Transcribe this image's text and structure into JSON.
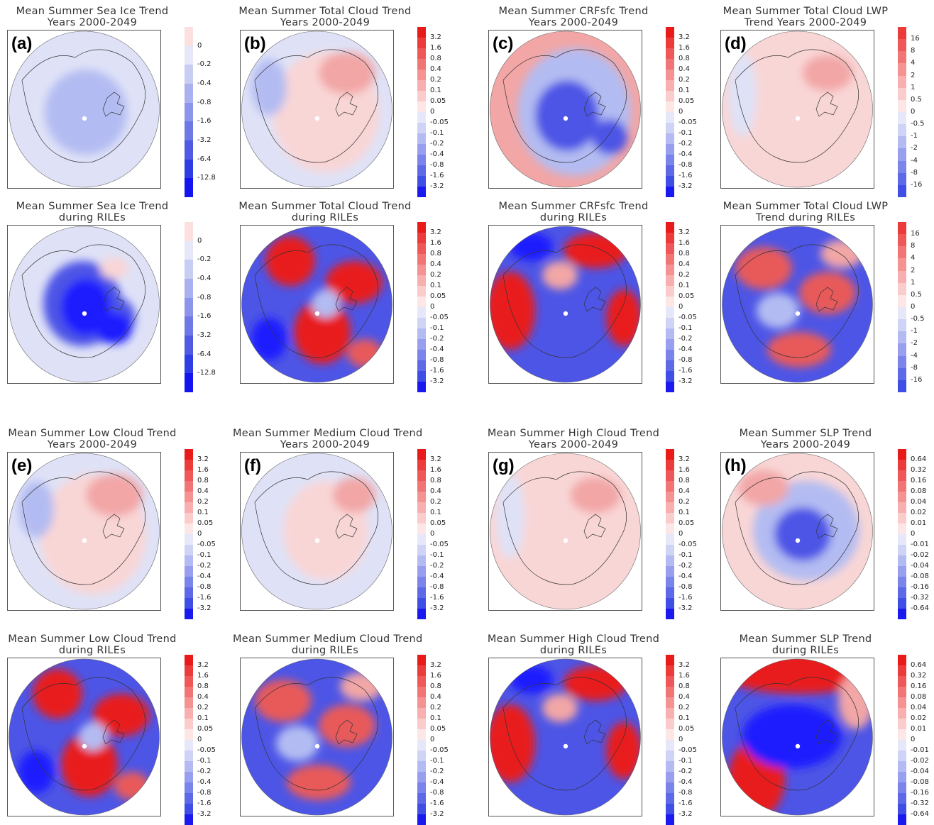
{
  "colors": {
    "dark_blue": "#1a1aff",
    "mid_blue": "#4d55e6",
    "light_blue": "#b3bcf2",
    "pale_blue": "#dfe2f7",
    "pale_red": "#f9d6d6",
    "light_red": "#f2a6a6",
    "mid_red": "#e85a5a",
    "dark_red": "#e81a1a"
  },
  "scales": {
    "seaice": [
      "0",
      "-0.2",
      "-0.4",
      "-0.8",
      "-1.6",
      "-3.2",
      "-6.4",
      "-12.8"
    ],
    "cloud": [
      "3.2",
      "1.6",
      "0.8",
      "0.4",
      "0.2",
      "0.1",
      "0.05",
      "0",
      "-0.05",
      "-0.1",
      "-0.2",
      "-0.4",
      "-0.8",
      "-1.6",
      "-3.2"
    ],
    "lwp": [
      "16",
      "8",
      "4",
      "2",
      "1",
      "0.5",
      "0",
      "-0.5",
      "-1",
      "-2",
      "-4",
      "-8",
      "-16"
    ],
    "slp": [
      "0.64",
      "0.32",
      "0.16",
      "0.08",
      "0.04",
      "0.02",
      "0.01",
      "0",
      "-0.01",
      "-0.02",
      "-0.04",
      "-0.08",
      "-0.16",
      "-0.32",
      "-0.64"
    ]
  },
  "panels": [
    {
      "title": "Mean Summer Sea Ice Trend\nYears 2000-2049",
      "label": "(a)",
      "scale": "seaice",
      "pattern": "ice_mild"
    },
    {
      "title": "Mean Summer Total Cloud Trend\nYears 2000-2049",
      "label": "(b)",
      "scale": "cloud",
      "pattern": "mild_pink"
    },
    {
      "title": "Mean Summer CRFsfc Trend\nYears 2000-2049",
      "label": "(c)",
      "scale": "cloud",
      "pattern": "mild_blue"
    },
    {
      "title": "Mean Summer Total Cloud LWP\nTrend Years 2000-2049",
      "label": "(d)",
      "scale": "lwp",
      "pattern": "pale_pink"
    },
    {
      "title": "Mean Summer Sea Ice Trend\nduring RILEs",
      "label": "",
      "scale": "seaice",
      "pattern": "ice_strong"
    },
    {
      "title": "Mean Summer Total Cloud Trend\nduring RILEs",
      "label": "",
      "scale": "cloud",
      "pattern": "strong_mix1"
    },
    {
      "title": "Mean Summer CRFsfc Trend\nduring RILEs",
      "label": "",
      "scale": "cloud",
      "pattern": "strong_mix2"
    },
    {
      "title": "Mean Summer Total Cloud LWP\nTrend during RILEs",
      "label": "",
      "scale": "lwp",
      "pattern": "strong_mix3"
    },
    {
      "title": "Mean Summer Low Cloud Trend\nYears 2000-2049",
      "label": "(e)",
      "scale": "cloud",
      "pattern": "mild_pink"
    },
    {
      "title": "Mean Summer Medium Cloud Trend\nYears 2000-2049",
      "label": "(f)",
      "scale": "cloud",
      "pattern": "pale_mix"
    },
    {
      "title": "Mean Summer High Cloud Trend\nYears 2000-2049",
      "label": "(g)",
      "scale": "cloud",
      "pattern": "pale_pink"
    },
    {
      "title": "Mean Summer SLP Trend\nYears 2000-2049",
      "label": "(h)",
      "scale": "slp",
      "pattern": "slp_mild"
    },
    {
      "title": "Mean Summer Low Cloud Trend\nduring RILEs",
      "label": "",
      "scale": "cloud",
      "pattern": "strong_mix1"
    },
    {
      "title": "Mean Summer Medium Cloud Trend\nduring RILEs",
      "label": "",
      "scale": "cloud",
      "pattern": "strong_mix3"
    },
    {
      "title": "Mean Summer High Cloud Trend\nduring RILEs",
      "label": "",
      "scale": "cloud",
      "pattern": "strong_mix2"
    },
    {
      "title": "Mean Summer SLP Trend\nduring RILEs",
      "label": "",
      "scale": "slp",
      "pattern": "slp_strong"
    }
  ]
}
